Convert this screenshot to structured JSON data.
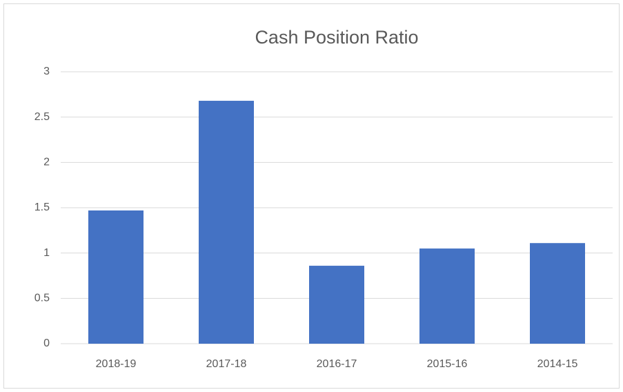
{
  "chart_data": {
    "type": "bar",
    "title": "Cash Position Ratio",
    "categories": [
      "2018-19",
      "2017-18",
      "2016-17",
      "2015-16",
      "2014-15"
    ],
    "values": [
      1.47,
      2.68,
      0.86,
      1.05,
      1.11
    ],
    "color": "#4472c4",
    "ylim": [
      0,
      3
    ],
    "yticks": [
      0,
      0.5,
      1,
      1.5,
      2,
      2.5,
      3
    ],
    "grid": true
  }
}
